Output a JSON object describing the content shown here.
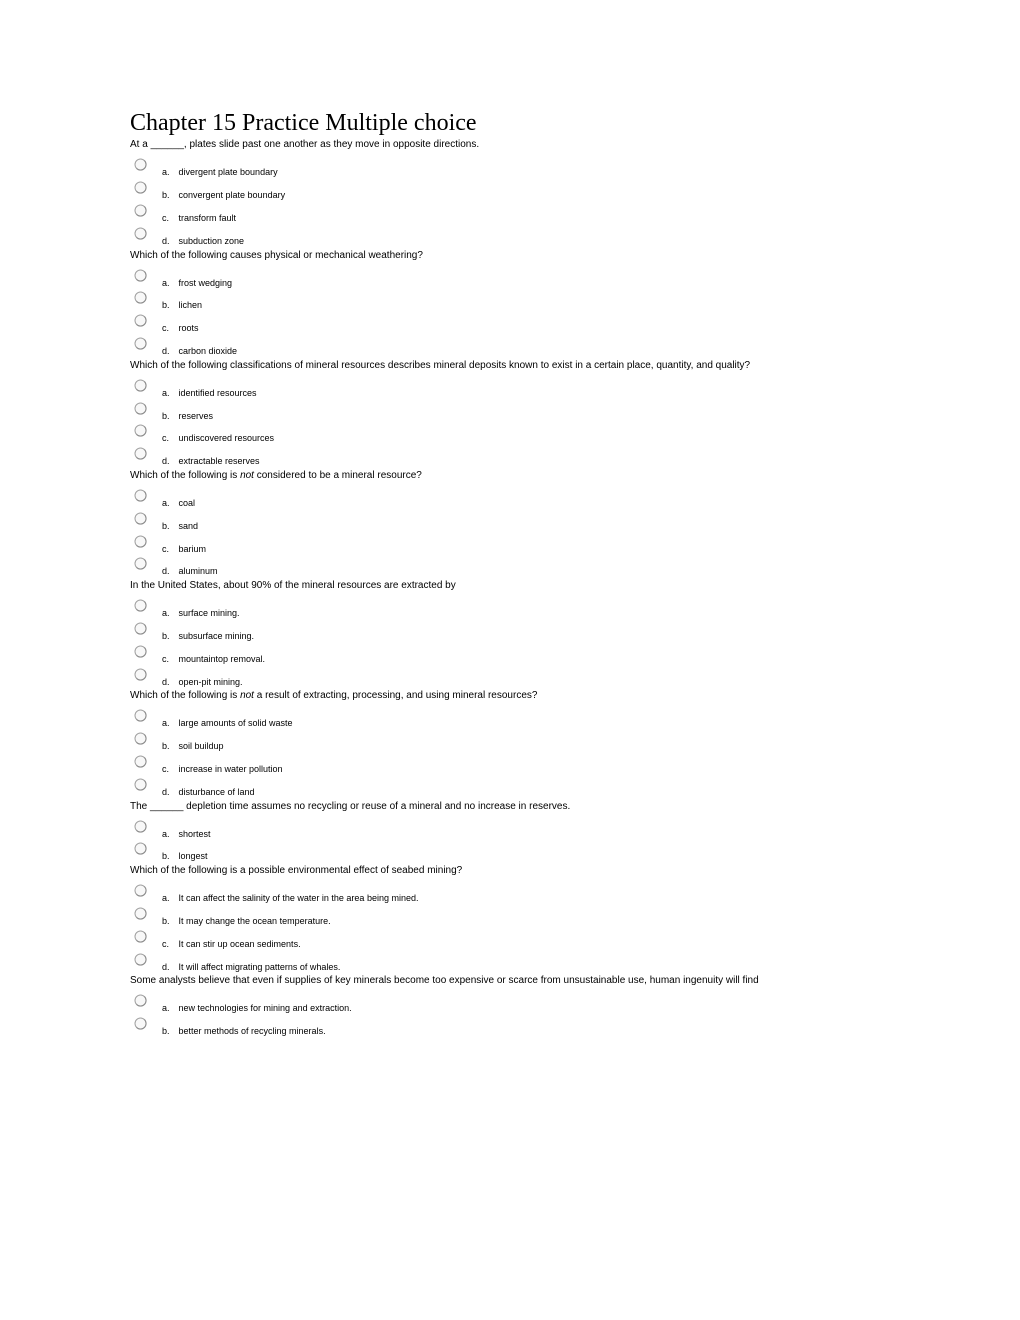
{
  "title": "Chapter 15 Practice Multiple choice",
  "questions": [
    {
      "stem_pre": "At a ______, plates slide past one another as they move in opposite directions.",
      "stem_not": null,
      "stem_post": null,
      "choices": [
        "divergent plate boundary",
        "convergent plate boundary",
        "transform fault",
        "subduction zone"
      ]
    },
    {
      "stem_pre": "Which of the following causes physical or mechanical weathering?",
      "stem_not": null,
      "stem_post": null,
      "choices": [
        "frost wedging",
        "lichen",
        "roots",
        "carbon dioxide"
      ]
    },
    {
      "stem_pre": "Which of the following classifications of mineral resources describes mineral deposits known to exist in a certain place, quantity, and quality?",
      "stem_not": null,
      "stem_post": null,
      "choices": [
        "identified resources",
        "reserves",
        "undiscovered resources",
        "extractable reserves"
      ]
    },
    {
      "stem_pre": "Which of the following is ",
      "stem_not": "not",
      "stem_post": " considered to be a mineral resource?",
      "choices": [
        "coal",
        "sand",
        "barium",
        "aluminum"
      ]
    },
    {
      "stem_pre": "In the United States, about 90% of the mineral resources are extracted by",
      "stem_not": null,
      "stem_post": null,
      "choices": [
        "surface mining.",
        "subsurface mining.",
        "mountaintop removal.",
        "open-pit mining."
      ]
    },
    {
      "stem_pre": "Which of the following is ",
      "stem_not": "not",
      "stem_post": " a result of extracting, processing, and using mineral resources?",
      "choices": [
        "large amounts of solid waste",
        "soil buildup",
        "increase in water pollution",
        "disturbance of land"
      ]
    },
    {
      "stem_pre": "The ______ depletion time assumes no recycling or reuse of a mineral and no increase in reserves.",
      "stem_not": null,
      "stem_post": null,
      "choices": [
        "shortest",
        "longest"
      ]
    },
    {
      "stem_pre": "Which of the following is a possible environmental effect of seabed mining?",
      "stem_not": null,
      "stem_post": null,
      "choices": [
        "It can affect the salinity of the water in the area being mined.",
        "It may change the ocean temperature.",
        "It can stir up ocean sediments.",
        "It will affect migrating patterns of whales."
      ]
    },
    {
      "stem_pre": "Some analysts believe that even if supplies of key minerals become too expensive or scarce from unsustainable use, human ingenuity will find",
      "stem_not": null,
      "stem_post": null,
      "choices": [
        "new technologies for mining and extraction.",
        "better methods of recycling minerals."
      ]
    }
  ],
  "letters": [
    "a.",
    "b.",
    "c.",
    "d."
  ],
  "radio_fill": "#f8f8f8",
  "radio_stroke": "#a0a0a0",
  "radio_shadow": "#707070"
}
